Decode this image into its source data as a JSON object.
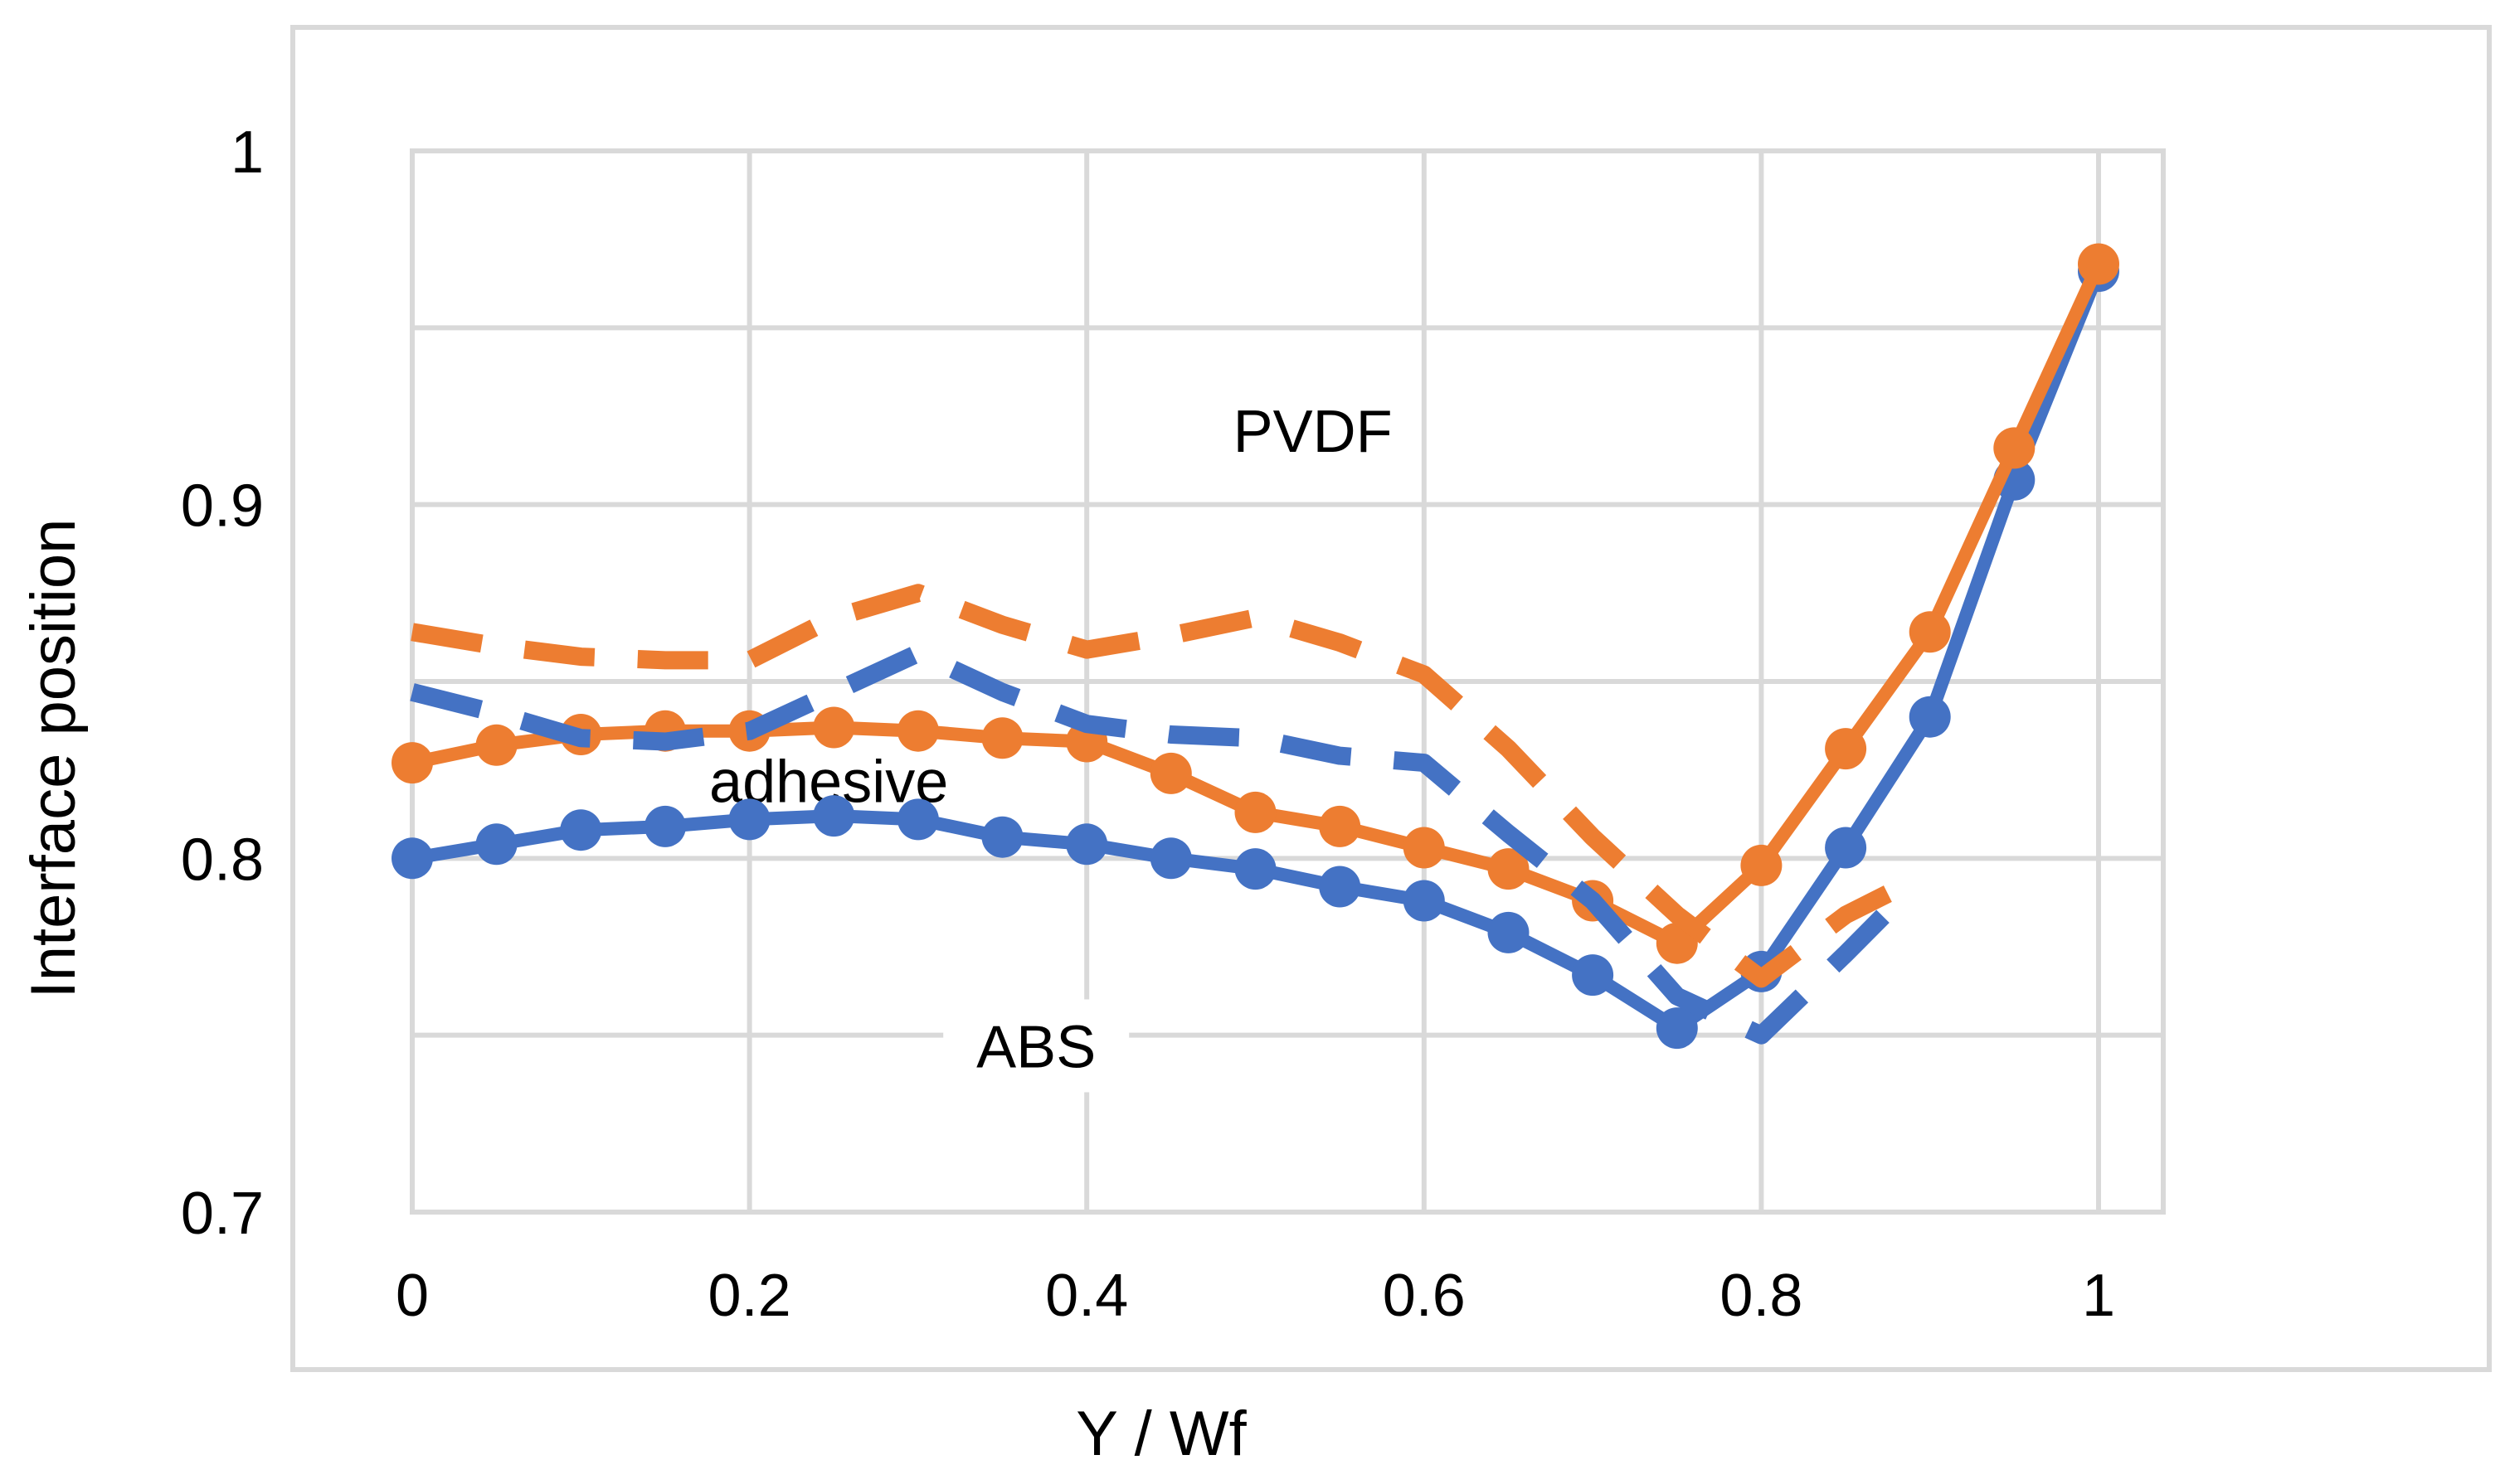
{
  "chart_data": {
    "type": "line",
    "title": "",
    "xlabel": "Y / Wf",
    "ylabel": "Interface position",
    "xlim": [
      0,
      1.038
    ],
    "ylim": [
      0.7,
      1.0
    ],
    "x_ticks": {
      "values": [
        0,
        0.2,
        0.4,
        0.6,
        0.8,
        1
      ],
      "labels": [
        "0",
        "0.2",
        "0.4",
        "0.6",
        "0.8",
        "1"
      ]
    },
    "y_ticks": {
      "values": [
        0.7,
        0.8,
        0.9,
        1
      ],
      "labels": [
        "0.7",
        "0.8",
        "0.9",
        "1"
      ]
    },
    "y_grid_step": 0.05,
    "grid": true,
    "legend_position": "none",
    "colors": {
      "blue": "#4472C4",
      "orange": "#ED7D31",
      "gridline": "#D9D9D9",
      "text": "#000000",
      "background": "#FFFFFF"
    },
    "series": [
      {
        "name": "blue-solid",
        "color_key": "blue",
        "style": "solid",
        "markers": true,
        "x": [
          0,
          0.05,
          0.1,
          0.15,
          0.2,
          0.25,
          0.3,
          0.35,
          0.4,
          0.45,
          0.5,
          0.55,
          0.6,
          0.65,
          0.7,
          0.75,
          0.8,
          0.85,
          0.9,
          0.95,
          1.0
        ],
        "y": [
          0.8,
          0.804,
          0.808,
          0.809,
          0.811,
          0.812,
          0.811,
          0.806,
          0.804,
          0.8,
          0.797,
          0.792,
          0.788,
          0.779,
          0.767,
          0.752,
          0.768,
          0.803,
          0.84,
          0.907,
          0.966
        ]
      },
      {
        "name": "orange-solid",
        "color_key": "orange",
        "style": "solid",
        "markers": true,
        "x": [
          0,
          0.05,
          0.1,
          0.15,
          0.2,
          0.25,
          0.3,
          0.35,
          0.4,
          0.45,
          0.5,
          0.55,
          0.6,
          0.65,
          0.7,
          0.75,
          0.8,
          0.85,
          0.9,
          0.95,
          1.0
        ],
        "y": [
          0.827,
          0.832,
          0.835,
          0.836,
          0.836,
          0.837,
          0.836,
          0.834,
          0.833,
          0.824,
          0.813,
          0.809,
          0.803,
          0.797,
          0.788,
          0.776,
          0.798,
          0.831,
          0.864,
          0.916,
          0.968
        ]
      },
      {
        "name": "blue-dashed",
        "color_key": "blue",
        "style": "dashed",
        "markers": false,
        "x": [
          0,
          0.05,
          0.1,
          0.15,
          0.2,
          0.25,
          0.3,
          0.35,
          0.4,
          0.45,
          0.5,
          0.55,
          0.6,
          0.65,
          0.7,
          0.75,
          0.8,
          0.85,
          0.875
        ],
        "y": [
          0.847,
          0.841,
          0.834,
          0.833,
          0.836,
          0.847,
          0.858,
          0.847,
          0.838,
          0.835,
          0.834,
          0.829,
          0.827,
          0.807,
          0.788,
          0.761,
          0.75,
          0.773,
          0.785
        ]
      },
      {
        "name": "orange-dashed",
        "color_key": "orange",
        "style": "dashed",
        "markers": false,
        "x": [
          0,
          0.05,
          0.1,
          0.15,
          0.2,
          0.25,
          0.3,
          0.35,
          0.4,
          0.45,
          0.5,
          0.55,
          0.6,
          0.65,
          0.7,
          0.75,
          0.8,
          0.85,
          0.875
        ],
        "y": [
          0.864,
          0.86,
          0.857,
          0.856,
          0.856,
          0.868,
          0.875,
          0.866,
          0.859,
          0.863,
          0.868,
          0.861,
          0.852,
          0.831,
          0.806,
          0.784,
          0.766,
          0.784,
          0.79
        ]
      }
    ],
    "annotations": [
      {
        "text": "PVDF",
        "x": 0.534,
        "y": 0.921
      },
      {
        "text": "adhesive",
        "x": 0.247,
        "y": 0.822
      },
      {
        "text": "ABS",
        "x": 0.37,
        "y": 0.747
      }
    ]
  }
}
